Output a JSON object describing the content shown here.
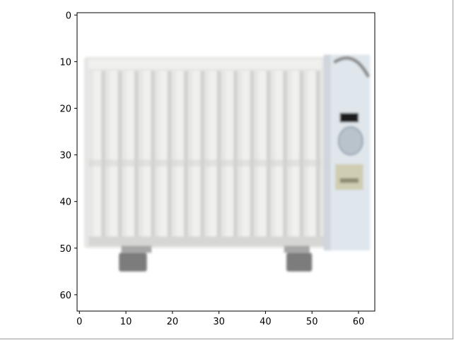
{
  "chart_data": {
    "type": "heatmap",
    "title": "",
    "xlabel": "",
    "ylabel": "",
    "xlim": [
      -0.5,
      63.5
    ],
    "ylim": [
      63.5,
      -0.5
    ],
    "y_inverted": true,
    "x_ticks": [
      0,
      10,
      20,
      30,
      40,
      50,
      60
    ],
    "y_ticks": [
      0,
      10,
      20,
      30,
      40,
      50,
      60
    ],
    "x_tick_labels": [
      "0",
      "10",
      "20",
      "30",
      "40",
      "50",
      "60"
    ],
    "y_tick_labels": [
      "0",
      "10",
      "20",
      "30",
      "40",
      "50",
      "60"
    ],
    "grid": false,
    "image_content": "low-resolution 64x64 pixel image of a white oil-filled radiator heater with control panel on the right",
    "colors": {
      "background": "#ffffff",
      "radiator_body": "#e6e6e4",
      "fin_light": "#f0f0ee",
      "fin_dark": "#d2d2d0",
      "control_panel": "#dfe6ec",
      "display": "#1a1a1a",
      "knob": "#b8c3cc",
      "label": "#cfcdb2",
      "feet": "#7c7c7c",
      "handle": "#8c8c8c"
    }
  }
}
